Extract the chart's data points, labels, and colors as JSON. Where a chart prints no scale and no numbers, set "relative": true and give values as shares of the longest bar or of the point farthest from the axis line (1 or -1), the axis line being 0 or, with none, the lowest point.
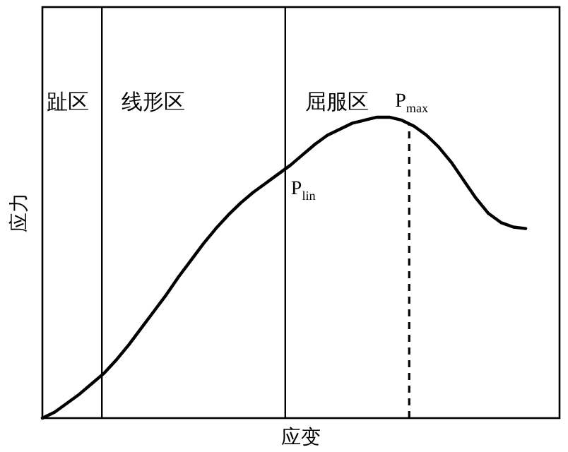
{
  "chart_data": {
    "type": "line",
    "relative": true,
    "xlabel": "应变",
    "ylabel": "应力",
    "marker": "none",
    "line_style": "solid",
    "categories": [
      null,
      null,
      null,
      null,
      null,
      null,
      null,
      null,
      null,
      null,
      null,
      null,
      null,
      null,
      null,
      null,
      null,
      null,
      null,
      null,
      null,
      null,
      null,
      null,
      null,
      null,
      null,
      null,
      null,
      null,
      null,
      null,
      null,
      null,
      null,
      null,
      null,
      null,
      null,
      null
    ],
    "series": [
      {
        "color": "#000000",
        "values": [
          0,
          0.02,
          0.05,
          0.08,
          0.115,
          0.15,
          0.195,
          0.245,
          0.3,
          0.355,
          0.41,
          0.47,
          0.525,
          0.58,
          0.63,
          0.675,
          0.715,
          0.75,
          0.78,
          0.81,
          0.84,
          0.875,
          0.91,
          0.94,
          0.96,
          0.98,
          0.99,
          1,
          1,
          0.99,
          0.97,
          0.94,
          0.9,
          0.85,
          0.79,
          0.73,
          0.68,
          0.65,
          0.635,
          0.63
        ]
      }
    ],
    "annotations": [
      "趾区",
      "线形区",
      "屈服区",
      "P$_{lin}$",
      "P$_{max}$"
    ]
  }
}
